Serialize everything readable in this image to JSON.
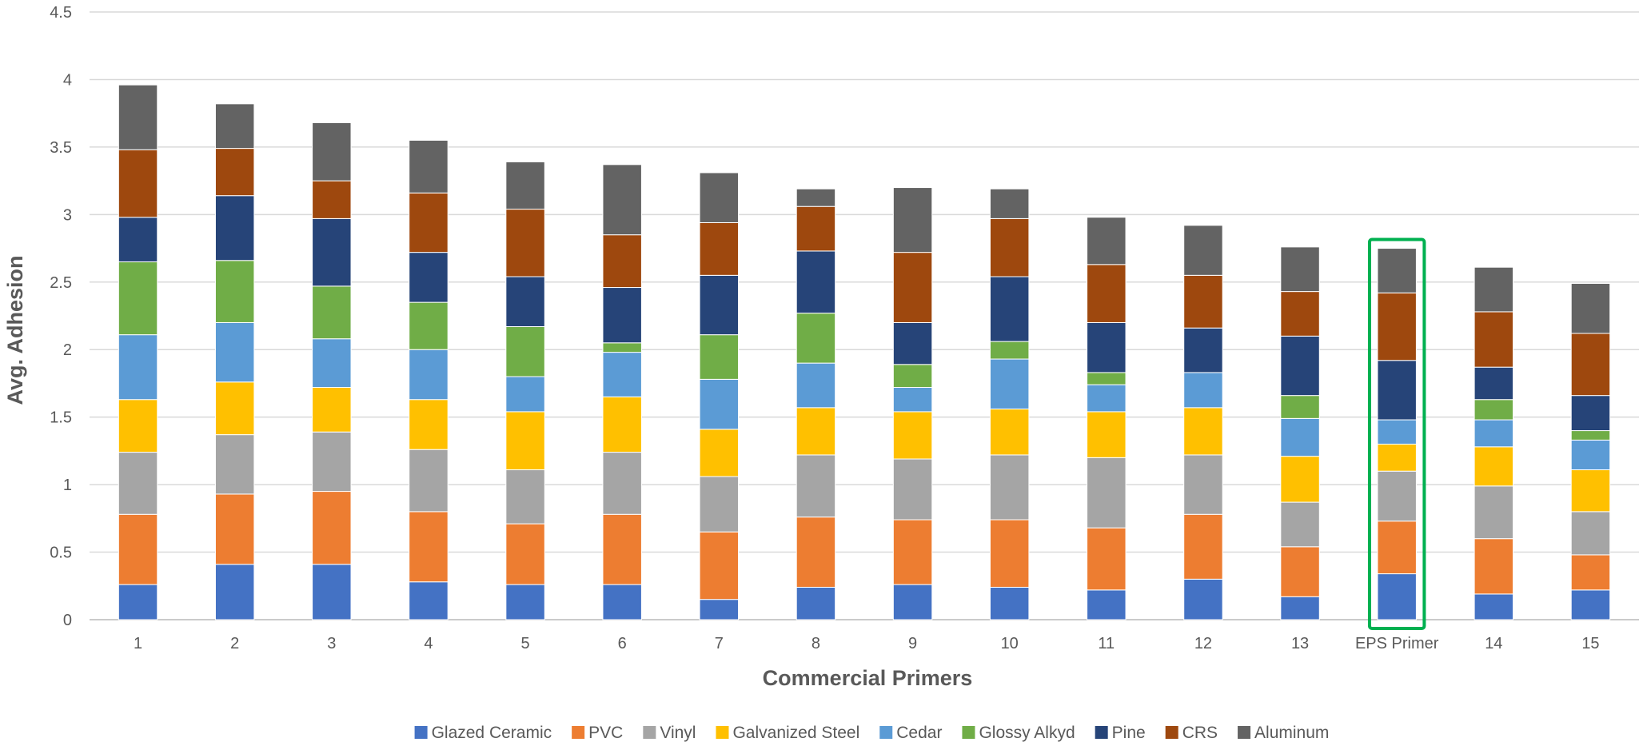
{
  "chart_data": {
    "type": "bar",
    "stacked": true,
    "xlabel": "Commercial Primers",
    "ylabel": "Avg. Adhesion",
    "ylim": [
      0,
      4.5
    ],
    "yticks": [
      "0",
      "0.5",
      "1",
      "1.5",
      "2",
      "2.5",
      "3",
      "3.5",
      "4",
      "4.5"
    ],
    "grid": true,
    "legend_position": "bottom",
    "highlight": {
      "category": "EPS Primer",
      "color": "#00b050"
    },
    "categories": [
      "1",
      "2",
      "3",
      "4",
      "5",
      "6",
      "7",
      "8",
      "9",
      "10",
      "11",
      "12",
      "13",
      "EPS Primer",
      "14",
      "15"
    ],
    "series": [
      {
        "name": "Glazed Ceramic",
        "color": "#4472c4",
        "values": [
          0.26,
          0.41,
          0.41,
          0.28,
          0.26,
          0.26,
          0.15,
          0.24,
          0.26,
          0.24,
          0.22,
          0.3,
          0.17,
          0.34,
          0.19,
          0.22
        ]
      },
      {
        "name": "PVC",
        "color": "#ed7d31",
        "values": [
          0.52,
          0.52,
          0.54,
          0.52,
          0.45,
          0.52,
          0.5,
          0.52,
          0.48,
          0.5,
          0.46,
          0.48,
          0.37,
          0.39,
          0.41,
          0.26
        ]
      },
      {
        "name": "Vinyl",
        "color": "#a5a5a5",
        "values": [
          0.46,
          0.44,
          0.44,
          0.46,
          0.4,
          0.46,
          0.41,
          0.46,
          0.45,
          0.48,
          0.52,
          0.44,
          0.33,
          0.37,
          0.39,
          0.32
        ]
      },
      {
        "name": "Galvanized Steel",
        "color": "#ffc000",
        "values": [
          0.39,
          0.39,
          0.33,
          0.37,
          0.43,
          0.41,
          0.35,
          0.35,
          0.35,
          0.34,
          0.34,
          0.35,
          0.34,
          0.2,
          0.29,
          0.31
        ]
      },
      {
        "name": "Cedar",
        "color": "#5b9bd5",
        "values": [
          0.48,
          0.44,
          0.36,
          0.37,
          0.26,
          0.33,
          0.37,
          0.33,
          0.18,
          0.37,
          0.2,
          0.26,
          0.28,
          0.18,
          0.2,
          0.22
        ]
      },
      {
        "name": "Glossy Alkyd",
        "color": "#70ad47",
        "values": [
          0.54,
          0.46,
          0.39,
          0.35,
          0.37,
          0.07,
          0.33,
          0.37,
          0.17,
          0.13,
          0.09,
          0.0,
          0.17,
          0.0,
          0.15,
          0.07
        ]
      },
      {
        "name": "Pine",
        "color": "#264478",
        "values": [
          0.33,
          0.48,
          0.5,
          0.37,
          0.37,
          0.41,
          0.44,
          0.46,
          0.31,
          0.48,
          0.37,
          0.33,
          0.44,
          0.44,
          0.24,
          0.26
        ]
      },
      {
        "name": "CRS",
        "color": "#9e480e",
        "values": [
          0.5,
          0.35,
          0.28,
          0.44,
          0.5,
          0.39,
          0.39,
          0.33,
          0.52,
          0.43,
          0.43,
          0.39,
          0.33,
          0.5,
          0.41,
          0.46
        ]
      },
      {
        "name": "Aluminum",
        "color": "#636363",
        "values": [
          0.48,
          0.33,
          0.43,
          0.39,
          0.35,
          0.52,
          0.37,
          0.13,
          0.48,
          0.22,
          0.35,
          0.37,
          0.33,
          0.33,
          0.33,
          0.37
        ]
      }
    ]
  }
}
